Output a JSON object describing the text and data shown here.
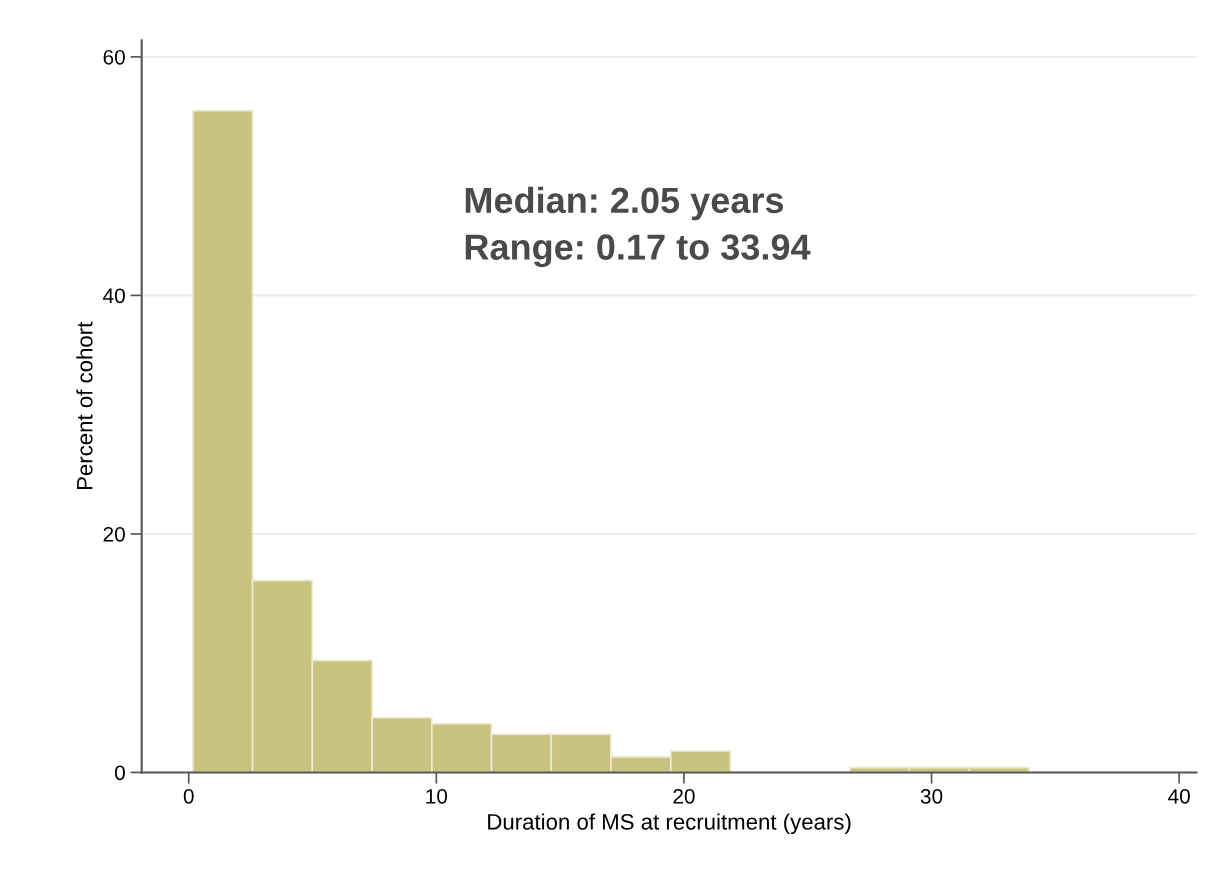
{
  "chart_data": {
    "type": "histogram",
    "xlabel": "Duration of MS at recruitment (years)",
    "ylabel": "Percent of cohort",
    "bins": [
      0.17,
      2.58,
      4.99,
      7.41,
      9.82,
      12.23,
      14.64,
      17.05,
      19.47,
      21.88,
      24.29,
      26.7,
      29.11,
      31.53,
      33.94
    ],
    "values": [
      55.5,
      16.1,
      9.4,
      4.6,
      4.1,
      3.2,
      3.2,
      1.3,
      1.8,
      0,
      0,
      0.4,
      0.4,
      0.4
    ],
    "color": "#c9c37f",
    "xlim": [
      -1.9,
      40.7
    ],
    "xticks": [
      0,
      10,
      20,
      30,
      40
    ],
    "ylim": [
      0,
      61.4
    ],
    "yticks": [
      0,
      20,
      40,
      60
    ],
    "grid": "y",
    "annotations": [
      "Median: 2.05 years\nRange: 0.17 to 33.94"
    ]
  }
}
